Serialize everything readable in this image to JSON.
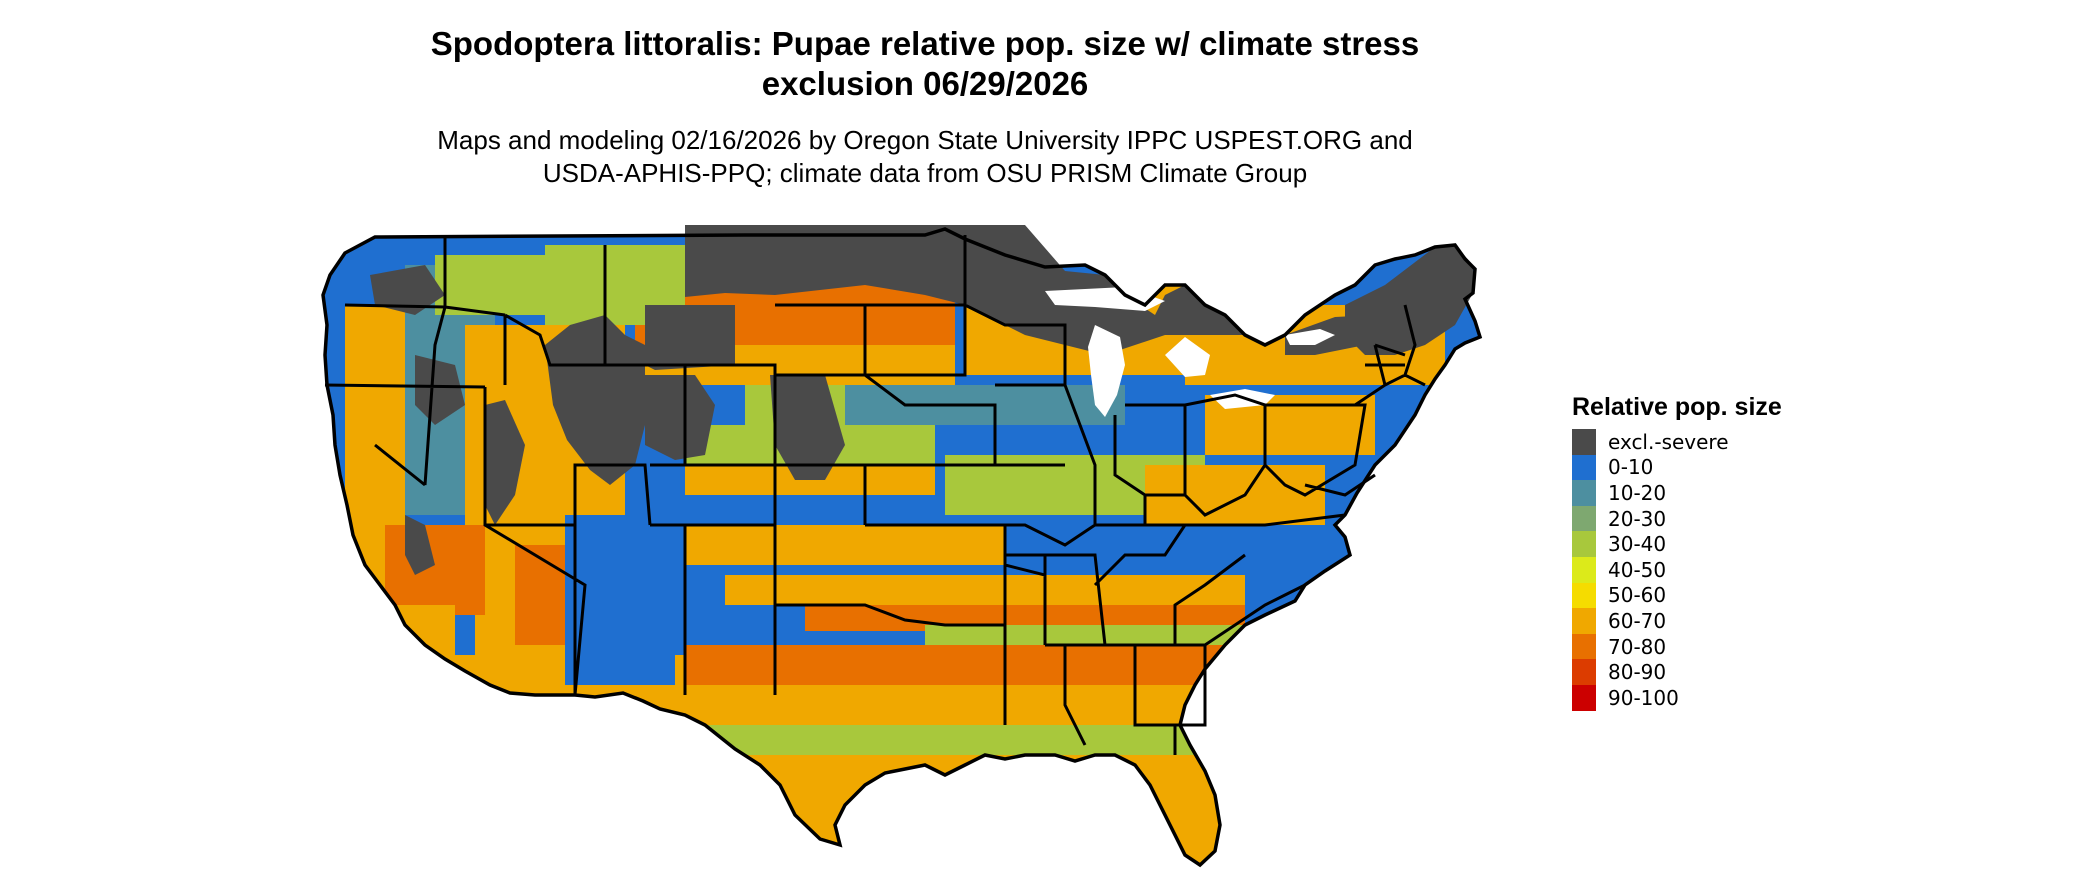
{
  "title_line1": "Spodoptera littoralis: Pupae relative pop. size w/ climate stress",
  "title_line2": "exclusion 06/29/2026",
  "subtitle_line1": "Maps and modeling 02/16/2026 by Oregon State University IPPC USPEST.ORG and",
  "subtitle_line2": "USDA-APHIS-PPQ; climate data from OSU PRISM Climate Group",
  "legend": {
    "title": "Relative pop. size",
    "items": [
      {
        "label": "excl.-severe",
        "color": "#4a4a4a"
      },
      {
        "label": "0-10",
        "color": "#1f6fd0"
      },
      {
        "label": "10-20",
        "color": "#4d8fa0"
      },
      {
        "label": "20-30",
        "color": "#7ea870"
      },
      {
        "label": "30-40",
        "color": "#a8c83c"
      },
      {
        "label": "40-50",
        "color": "#dcea1a"
      },
      {
        "label": "50-60",
        "color": "#f5dc00"
      },
      {
        "label": "60-70",
        "color": "#f0a800"
      },
      {
        "label": "70-80",
        "color": "#e87000"
      },
      {
        "label": "80-90",
        "color": "#dc3c00"
      },
      {
        "label": "90-100",
        "color": "#cc0000"
      }
    ]
  }
}
